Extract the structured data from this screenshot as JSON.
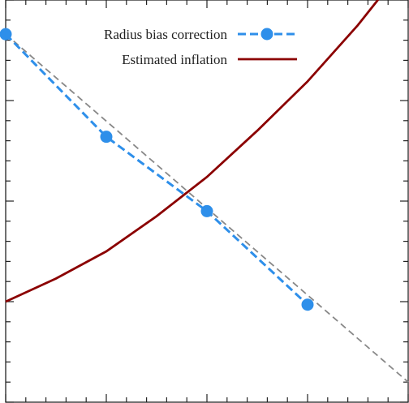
{
  "chart_data": {
    "type": "line",
    "title": "",
    "xlabel": "",
    "ylabel": "",
    "xlim": [
      0,
      4
    ],
    "ylim": [
      0,
      4
    ],
    "grid": false,
    "legend_position": "top-right",
    "series": [
      {
        "name": "Radius bias correction",
        "color": "#2E8FEA",
        "style": "dashed",
        "marker": "circle",
        "x": [
          0,
          1,
          2,
          3
        ],
        "y": [
          3.66,
          2.64,
          1.9,
          0.97
        ]
      },
      {
        "name": "Estimated inflation",
        "color": "#8B0000",
        "style": "solid",
        "marker": "none",
        "x": [
          0,
          0.5,
          1,
          1.5,
          2,
          2.5,
          3,
          3.5,
          4
        ],
        "y": [
          1.0,
          1.23,
          1.5,
          1.85,
          2.24,
          2.7,
          3.19,
          3.75,
          4.38
        ]
      },
      {
        "name": "",
        "color": "#888888",
        "style": "dashed",
        "marker": "none",
        "x": [
          0,
          4
        ],
        "y": [
          3.66,
          0.2
        ]
      }
    ]
  }
}
